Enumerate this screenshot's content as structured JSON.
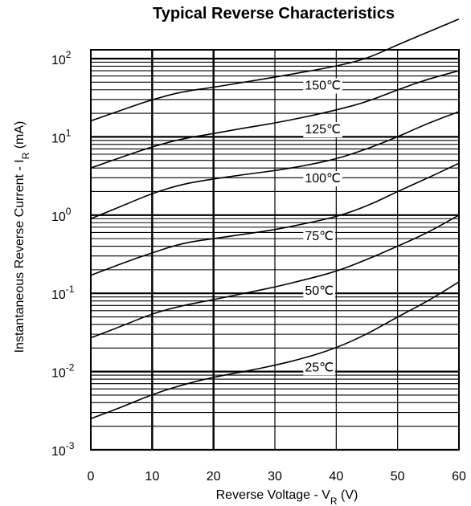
{
  "chart_data": {
    "type": "line",
    "title": "Typical Reverse Characteristics",
    "xlabel": "Reverse Voltage - V",
    "xlabel_sub": "R",
    "xlabel_unit": " (V)",
    "ylabel": "Instantaneous Reverse Current - I",
    "ylabel_sub": "R",
    "ylabel_unit": " (mA)",
    "xlim": [
      0,
      60
    ],
    "ylim": [
      0.001,
      400
    ],
    "y_scale": "log",
    "grid": true,
    "x_ticks": [
      0,
      10,
      20,
      30,
      40,
      50,
      60
    ],
    "x_tick_labels": [
      "0",
      "10",
      "20",
      "30",
      "40",
      "50",
      "60"
    ],
    "y_tick_labels": [
      {
        "value": 100,
        "base": "10",
        "exp": "2"
      },
      {
        "value": 10,
        "base": "10",
        "exp": "1"
      },
      {
        "value": 1,
        "base": "10",
        "exp": "0"
      },
      {
        "value": 0.1,
        "base": "10",
        "exp": "-1"
      },
      {
        "value": 0.01,
        "base": "10",
        "exp": "-2"
      },
      {
        "value": 0.001,
        "base": "10",
        "exp": "-3"
      }
    ],
    "series": [
      {
        "name": "150℃",
        "x": [
          0,
          5,
          10,
          15,
          20,
          25,
          30,
          35,
          40,
          45,
          50,
          55,
          60
        ],
        "y": [
          16,
          22,
          30,
          38,
          43,
          50,
          58,
          68,
          80,
          100,
          150,
          220,
          320
        ]
      },
      {
        "name": "125℃",
        "x": [
          0,
          5,
          10,
          15,
          20,
          25,
          30,
          35,
          40,
          45,
          50,
          55,
          60
        ],
        "y": [
          4,
          5.5,
          7.5,
          9.5,
          11,
          13,
          15,
          18,
          22,
          28,
          40,
          55,
          70
        ]
      },
      {
        "name": "100℃",
        "x": [
          0,
          5,
          10,
          15,
          20,
          25,
          30,
          35,
          40,
          45,
          50,
          55,
          60
        ],
        "y": [
          0.9,
          1.3,
          1.9,
          2.5,
          2.9,
          3.3,
          3.7,
          4.3,
          5.2,
          7,
          10,
          15,
          21
        ]
      },
      {
        "name": "75℃",
        "x": [
          0,
          5,
          10,
          15,
          20,
          25,
          30,
          35,
          40,
          45,
          50,
          55,
          60
        ],
        "y": [
          0.17,
          0.24,
          0.33,
          0.44,
          0.5,
          0.57,
          0.65,
          0.78,
          0.95,
          1.3,
          2,
          3,
          4.6
        ]
      },
      {
        "name": "50℃",
        "x": [
          0,
          5,
          10,
          15,
          20,
          25,
          30,
          35,
          40,
          45,
          50,
          55,
          60
        ],
        "y": [
          0.027,
          0.038,
          0.055,
          0.07,
          0.083,
          0.1,
          0.12,
          0.15,
          0.19,
          0.27,
          0.4,
          0.6,
          1
        ]
      },
      {
        "name": "25℃",
        "x": [
          0,
          5,
          10,
          15,
          20,
          25,
          30,
          35,
          40,
          45,
          50,
          55,
          60
        ],
        "y": [
          0.0025,
          0.0035,
          0.0051,
          0.0068,
          0.0085,
          0.01,
          0.012,
          0.015,
          0.02,
          0.03,
          0.05,
          0.08,
          0.14
        ]
      }
    ],
    "series_label_x": 40
  }
}
